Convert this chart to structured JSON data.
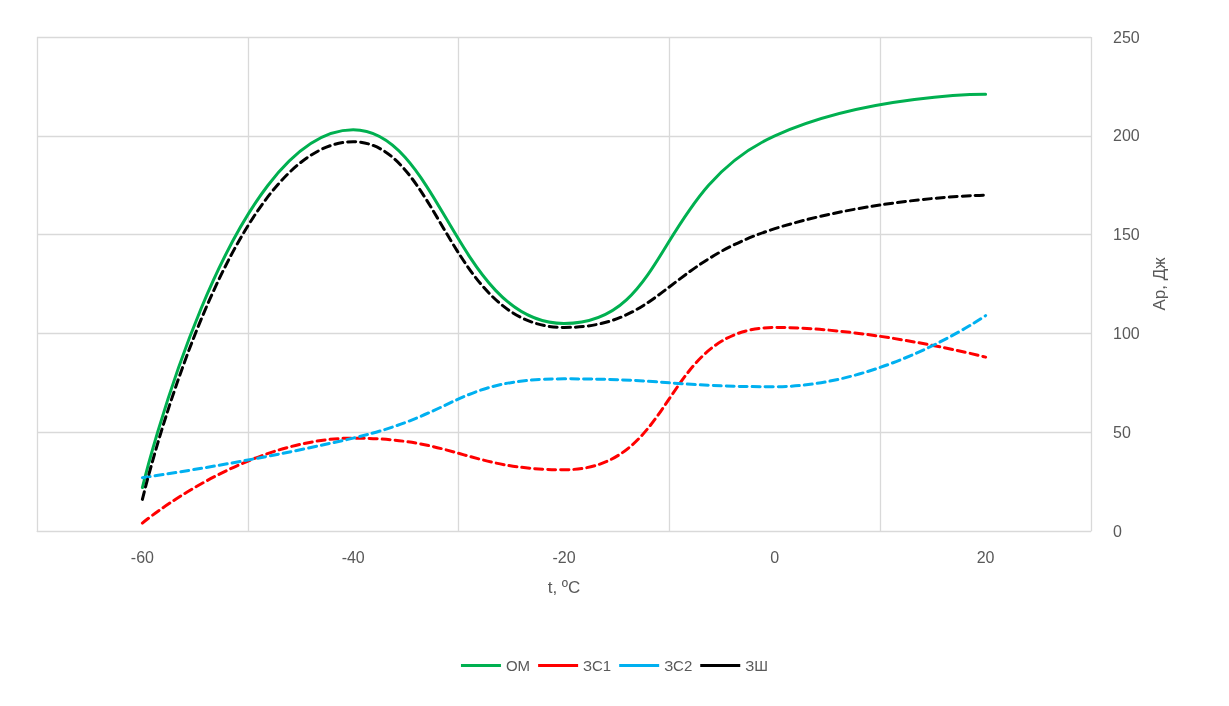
{
  "chart_data": {
    "type": "line",
    "xlabel": "t, ºC",
    "ylabel": "Ар, Дж",
    "x": [
      -60,
      -40,
      -20,
      0,
      20
    ],
    "series": [
      {
        "name": "ОМ",
        "color": "#00b050",
        "line_style": "solid",
        "values": [
          22,
          203,
          105,
          200,
          221
        ]
      },
      {
        "name": "ЗС1",
        "color": "#ff0000",
        "line_style": "dashed",
        "values": [
          4,
          47,
          31,
          103,
          88
        ]
      },
      {
        "name": "ЗС2",
        "color": "#00b0f0",
        "line_style": "dashed",
        "values": [
          27,
          47,
          77,
          73,
          109
        ]
      },
      {
        "name": "ЗШ",
        "color": "#000000",
        "line_style": "dashed",
        "values": [
          16,
          197,
          103,
          153,
          170
        ]
      }
    ],
    "xlim": [
      -70,
      30
    ],
    "xticks": [
      {
        "value": -70,
        "label": null
      },
      -60,
      {
        "value": -50,
        "label": null
      },
      -40,
      {
        "value": -30,
        "label": null
      },
      -20,
      {
        "value": -10,
        "label": null
      },
      0,
      {
        "value": 10,
        "label": null
      },
      20,
      {
        "value": 30,
        "label": null
      }
    ],
    "ylim": [
      0,
      250
    ],
    "yticks": [
      0,
      50,
      100,
      150,
      200,
      250
    ],
    "grid": true,
    "legend": "bottom",
    "marker": "none"
  }
}
